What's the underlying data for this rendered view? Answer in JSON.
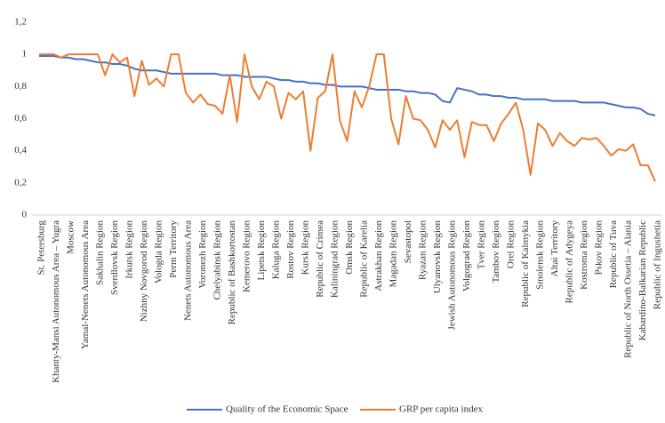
{
  "chart_data": {
    "type": "line",
    "categories": [
      "St. Petersburg",
      null,
      "Khanty-Mansi Autonomous Area – Yugra",
      null,
      "Moscow",
      null,
      "Yamal-Nenets Autonomous Area",
      null,
      "Sakhalin Region",
      null,
      "Sverdlovsk Region",
      null,
      "Irkutsk Region",
      null,
      "Nizhny Novgorod Region",
      null,
      "Vologda Region",
      null,
      "Perm Territory",
      null,
      "Nenets Autonomous Area",
      null,
      "Voronezh Region",
      null,
      "Chelyabinsk Region",
      null,
      "Republic of Bashkortostan",
      null,
      "Kemerovo Region",
      null,
      "Lipetsk Region",
      null,
      "Kaluga Region",
      null,
      "Rostov Region",
      null,
      "Kursk Region",
      null,
      "Republic of Crimea",
      null,
      "Kaliningrad Region",
      null,
      "Omsk Region",
      null,
      "Republic of Karelia",
      null,
      "Astrakhan Region",
      null,
      "Magadan Region",
      null,
      "Sevastopol",
      null,
      "Ryazan Region",
      null,
      "Ulyanovsk Region",
      null,
      "Jewish Autonomous Region",
      null,
      "Volgograd Region",
      null,
      "Tver Region",
      null,
      "Tambov Region",
      null,
      "Orel Region",
      null,
      "Republic of Kalmykia",
      null,
      "Smolensk Region",
      null,
      "Altai Territory",
      null,
      "Republic of Adygeya",
      null,
      "Kostroma Region",
      null,
      "Pskov Region",
      null,
      "Republic of Tuva",
      null,
      "Republic of North Ossetia – Alania",
      null,
      "Kabardino-Balkarian Republic",
      null,
      "Republic of Ingushetia"
    ],
    "series": [
      {
        "name": "Quality of the Economic Space",
        "color": "#4472c4",
        "values": [
          0.99,
          0.99,
          0.99,
          0.98,
          0.98,
          0.97,
          0.97,
          0.96,
          0.95,
          0.95,
          0.94,
          0.94,
          0.93,
          0.91,
          0.9,
          0.9,
          0.9,
          0.89,
          0.88,
          0.88,
          0.88,
          0.88,
          0.88,
          0.88,
          0.88,
          0.87,
          0.87,
          0.87,
          0.86,
          0.86,
          0.86,
          0.86,
          0.85,
          0.84,
          0.84,
          0.83,
          0.83,
          0.82,
          0.82,
          0.81,
          0.81,
          0.8,
          0.8,
          0.8,
          0.8,
          0.79,
          0.78,
          0.78,
          0.78,
          0.78,
          0.77,
          0.77,
          0.76,
          0.76,
          0.75,
          0.71,
          0.7,
          0.79,
          0.78,
          0.77,
          0.75,
          0.75,
          0.74,
          0.74,
          0.73,
          0.73,
          0.72,
          0.72,
          0.72,
          0.72,
          0.71,
          0.71,
          0.71,
          0.71,
          0.7,
          0.7,
          0.7,
          0.7,
          0.69,
          0.68,
          0.67,
          0.67,
          0.66,
          0.63,
          0.62
        ]
      },
      {
        "name": "GRP per capita index",
        "color": "#ed7d31",
        "values": [
          1,
          1,
          1,
          0.98,
          1,
          1,
          1,
          1,
          1,
          0.87,
          1,
          0.95,
          0.98,
          0.74,
          0.96,
          0.81,
          0.85,
          0.8,
          1,
          1,
          0.76,
          0.7,
          0.75,
          0.69,
          0.68,
          0.63,
          0.87,
          0.58,
          1,
          0.8,
          0.72,
          0.83,
          0.8,
          0.6,
          0.76,
          0.72,
          0.77,
          0.4,
          0.73,
          0.77,
          1,
          0.59,
          0.46,
          0.77,
          0.67,
          0.8,
          1,
          1,
          0.6,
          0.44,
          0.74,
          0.6,
          0.59,
          0.53,
          0.42,
          0.59,
          0.53,
          0.59,
          0.36,
          0.58,
          0.56,
          0.56,
          0.46,
          0.57,
          0.63,
          0.7,
          0.53,
          0.25,
          0.57,
          0.53,
          0.43,
          0.51,
          0.46,
          0.43,
          0.48,
          0.47,
          0.48,
          0.43,
          0.37,
          0.41,
          0.4,
          0.44,
          0.31,
          0.31,
          0.21
        ]
      }
    ],
    "ylim": [
      0,
      1.2
    ],
    "yticks": [
      0,
      {
        "value": 0.2,
        "label": "0,2"
      },
      {
        "value": 0.4,
        "label": "0,4"
      },
      {
        "value": 0.6,
        "label": "0,6"
      },
      {
        "value": 0.8,
        "label": "0,8"
      },
      1,
      {
        "value": 1.2,
        "label": "1,2"
      }
    ],
    "grid": false,
    "legend": "bottom"
  }
}
